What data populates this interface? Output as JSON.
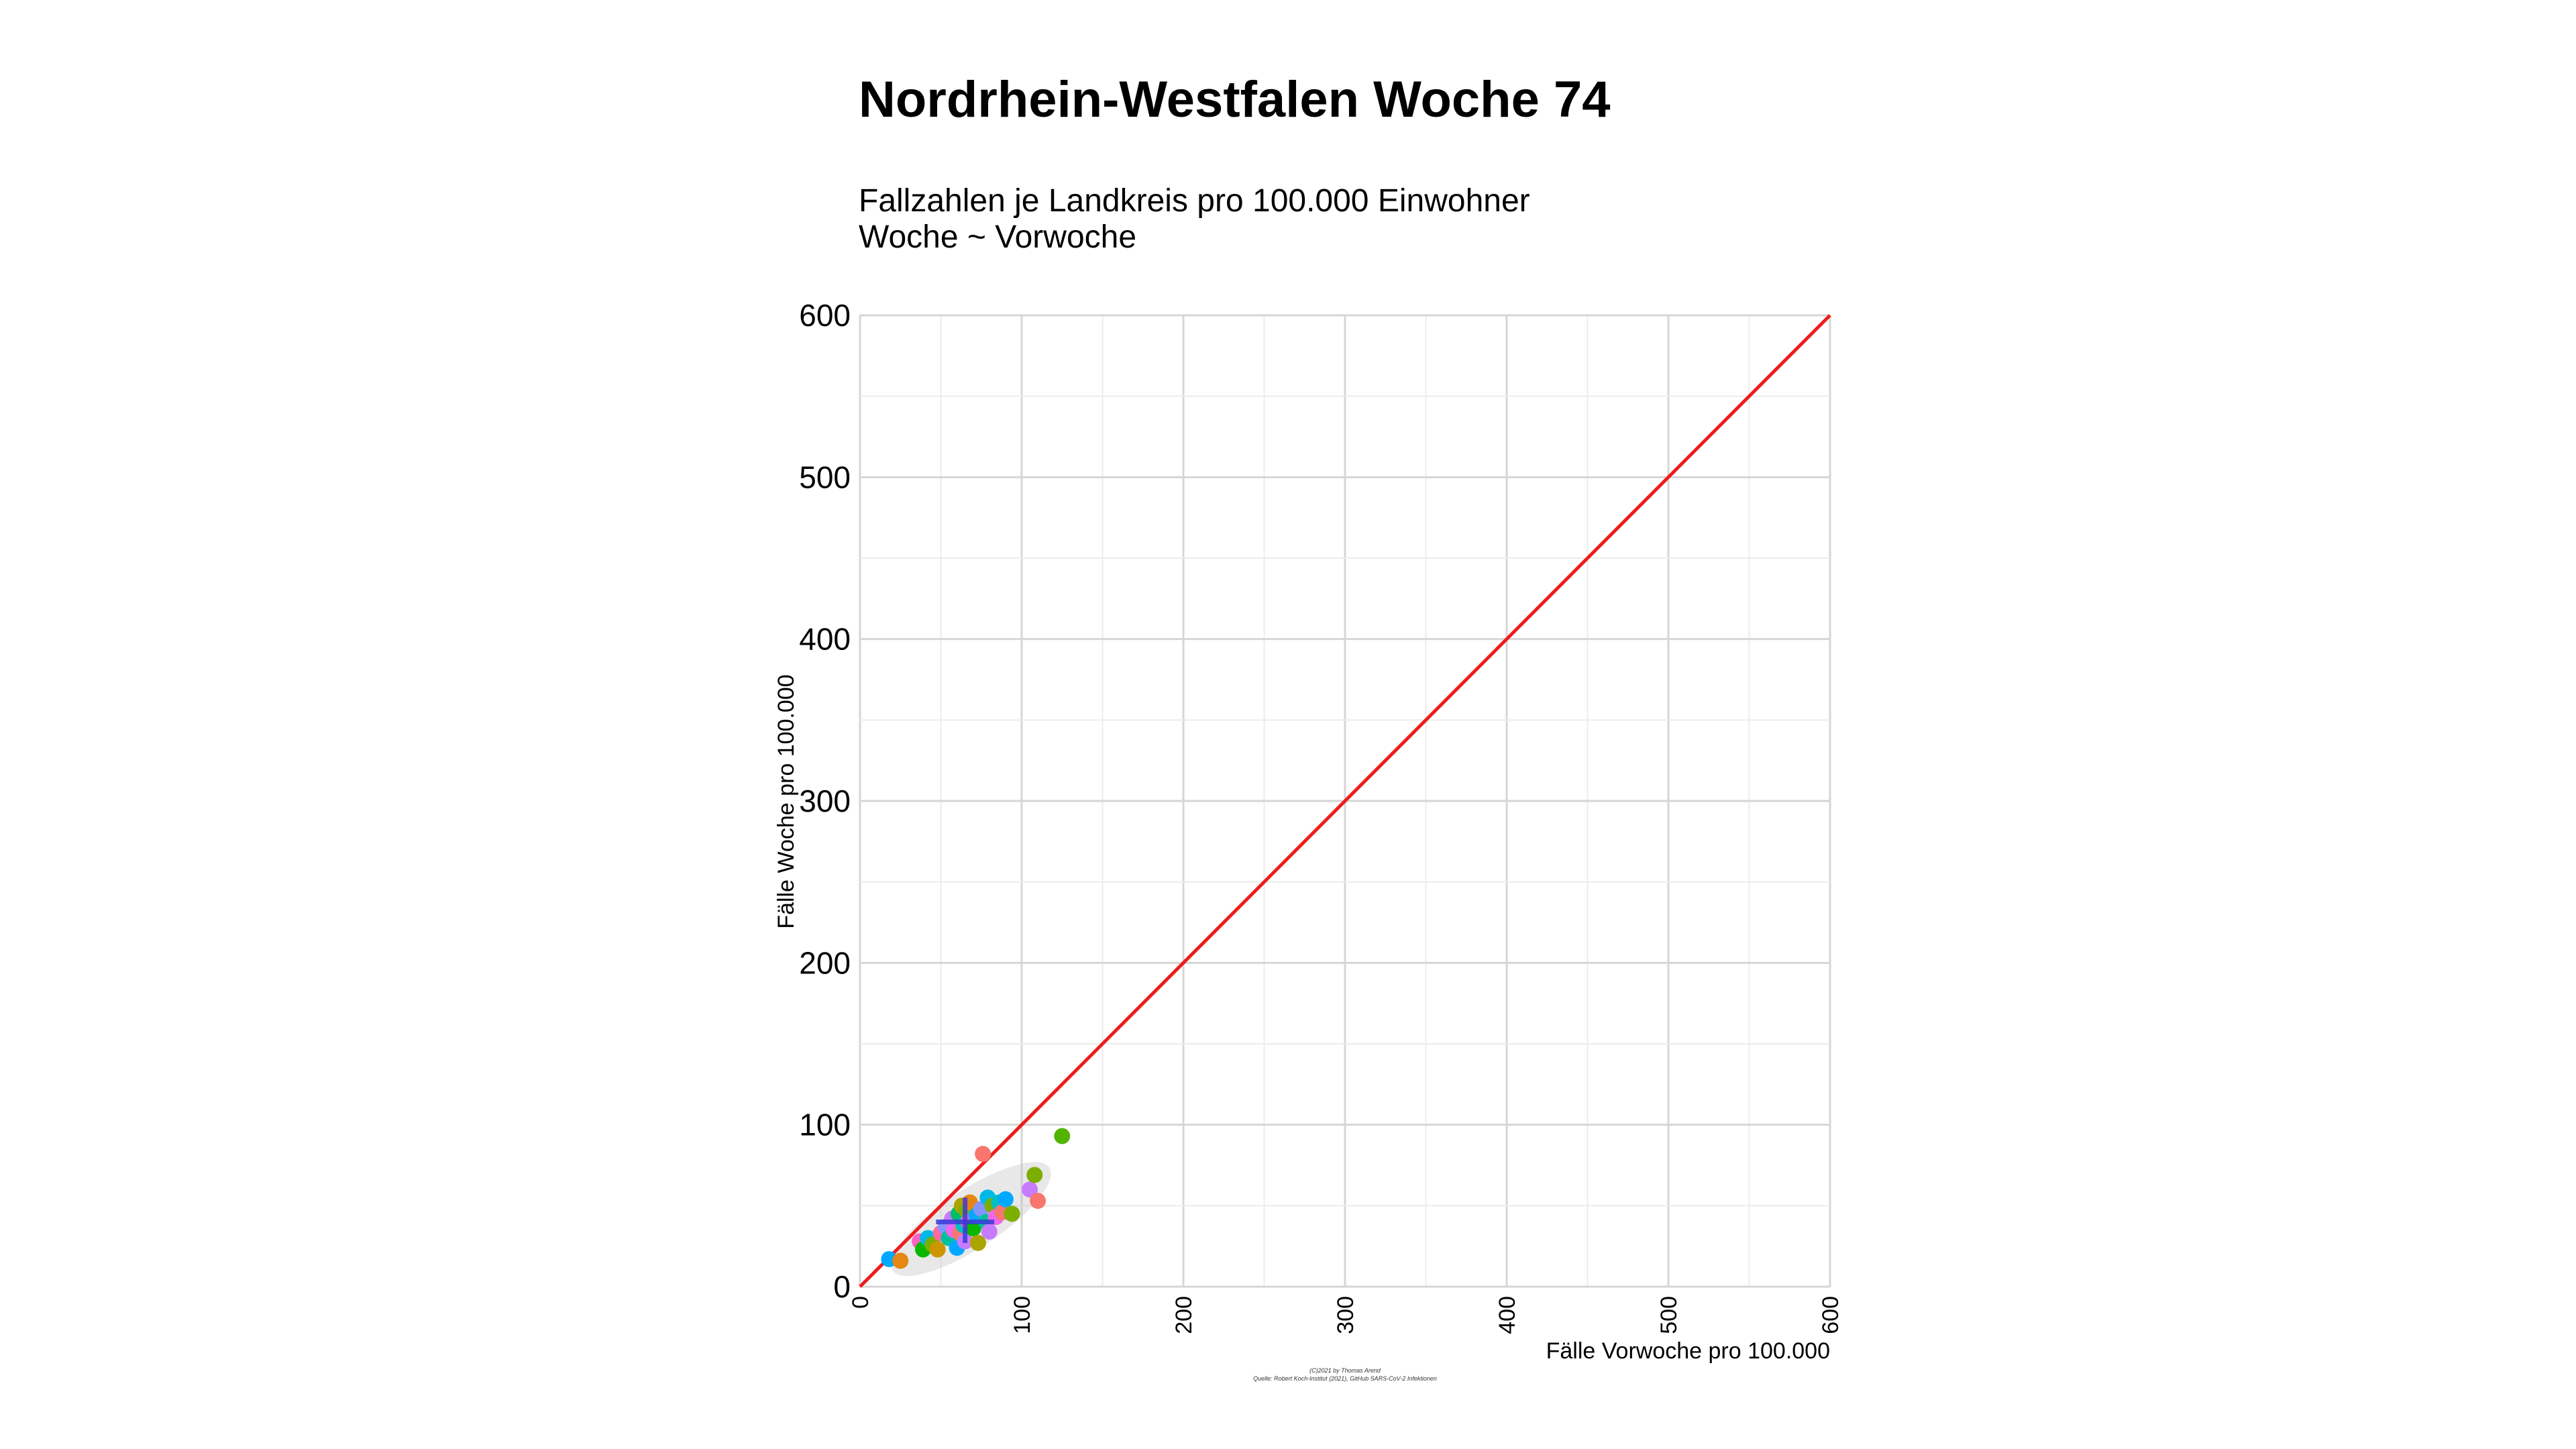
{
  "chart_data": {
    "type": "scatter",
    "title": "Nordrhein-Westfalen Woche 74",
    "subtitle_lines": [
      "Fallzahlen je Landkreis pro 100.000 Einwohner",
      "Woche ~ Vorwoche"
    ],
    "xlabel": "Fälle Vorwoche pro 100.000",
    "ylabel": "Fälle Woche pro 100.000",
    "xlim": [
      0,
      600
    ],
    "ylim": [
      0,
      600
    ],
    "x_ticks": [
      "0",
      "100",
      "200",
      "300",
      "400",
      "500",
      "600"
    ],
    "y_ticks": [
      "0",
      "100",
      "200",
      "300",
      "400",
      "500",
      "600"
    ],
    "grid": true,
    "reference_line": {
      "from": [
        0,
        0
      ],
      "to": [
        600,
        600
      ],
      "color": "#ee1c1c"
    },
    "median_cross": {
      "x": 65,
      "y": 40,
      "x_range": [
        47,
        83
      ],
      "y_range": [
        27,
        55
      ],
      "color": "#3a3ad8"
    },
    "points": [
      {
        "x": 18,
        "y": 17,
        "color": "#00a9ff"
      },
      {
        "x": 25,
        "y": 16,
        "color": "#e68613"
      },
      {
        "x": 37,
        "y": 28,
        "color": "#ff61c3"
      },
      {
        "x": 39,
        "y": 23,
        "color": "#0cb702"
      },
      {
        "x": 42,
        "y": 30,
        "color": "#00b8e7"
      },
      {
        "x": 45,
        "y": 26,
        "color": "#7cae00"
      },
      {
        "x": 48,
        "y": 23,
        "color": "#cd9600"
      },
      {
        "x": 50,
        "y": 33,
        "color": "#ff68a1"
      },
      {
        "x": 53,
        "y": 37,
        "color": "#8494ff"
      },
      {
        "x": 55,
        "y": 30,
        "color": "#00c19a"
      },
      {
        "x": 57,
        "y": 42,
        "color": "#c77cff"
      },
      {
        "x": 58,
        "y": 35,
        "color": "#ed68ed"
      },
      {
        "x": 60,
        "y": 24,
        "color": "#00a9ff"
      },
      {
        "x": 61,
        "y": 45,
        "color": "#00be67"
      },
      {
        "x": 62,
        "y": 33,
        "color": "#f8766d"
      },
      {
        "x": 63,
        "y": 50,
        "color": "#aba300"
      },
      {
        "x": 64,
        "y": 38,
        "color": "#00bfc4"
      },
      {
        "x": 65,
        "y": 28,
        "color": "#c77cff"
      },
      {
        "x": 66,
        "y": 47,
        "color": "#7cae00"
      },
      {
        "x": 67,
        "y": 40,
        "color": "#ff61c3"
      },
      {
        "x": 68,
        "y": 52,
        "color": "#e68613"
      },
      {
        "x": 70,
        "y": 36,
        "color": "#0cb702"
      },
      {
        "x": 72,
        "y": 44,
        "color": "#00a9ff"
      },
      {
        "x": 73,
        "y": 27,
        "color": "#aba300"
      },
      {
        "x": 75,
        "y": 48,
        "color": "#8494ff"
      },
      {
        "x": 76,
        "y": 82,
        "color": "#f8766d"
      },
      {
        "x": 78,
        "y": 40,
        "color": "#00c19a"
      },
      {
        "x": 79,
        "y": 55,
        "color": "#00b8e7"
      },
      {
        "x": 80,
        "y": 34,
        "color": "#c77cff"
      },
      {
        "x": 82,
        "y": 50,
        "color": "#7cae00"
      },
      {
        "x": 84,
        "y": 43,
        "color": "#ed68ed"
      },
      {
        "x": 86,
        "y": 52,
        "color": "#00bfc4"
      },
      {
        "x": 88,
        "y": 46,
        "color": "#f8766d"
      },
      {
        "x": 90,
        "y": 54,
        "color": "#00a9ff"
      },
      {
        "x": 94,
        "y": 45,
        "color": "#7cae00"
      },
      {
        "x": 105,
        "y": 60,
        "color": "#c77cff"
      },
      {
        "x": 108,
        "y": 69,
        "color": "#7cae00"
      },
      {
        "x": 110,
        "y": 53,
        "color": "#f8766d"
      },
      {
        "x": 125,
        "y": 93,
        "color": "#53b400"
      }
    ]
  },
  "caption_lines": [
    "(C)2021 by Thomas Arend",
    "Quelle: Robert Koch-Institut (2021), GitHub SARS-CoV-2 Infektionen"
  ]
}
